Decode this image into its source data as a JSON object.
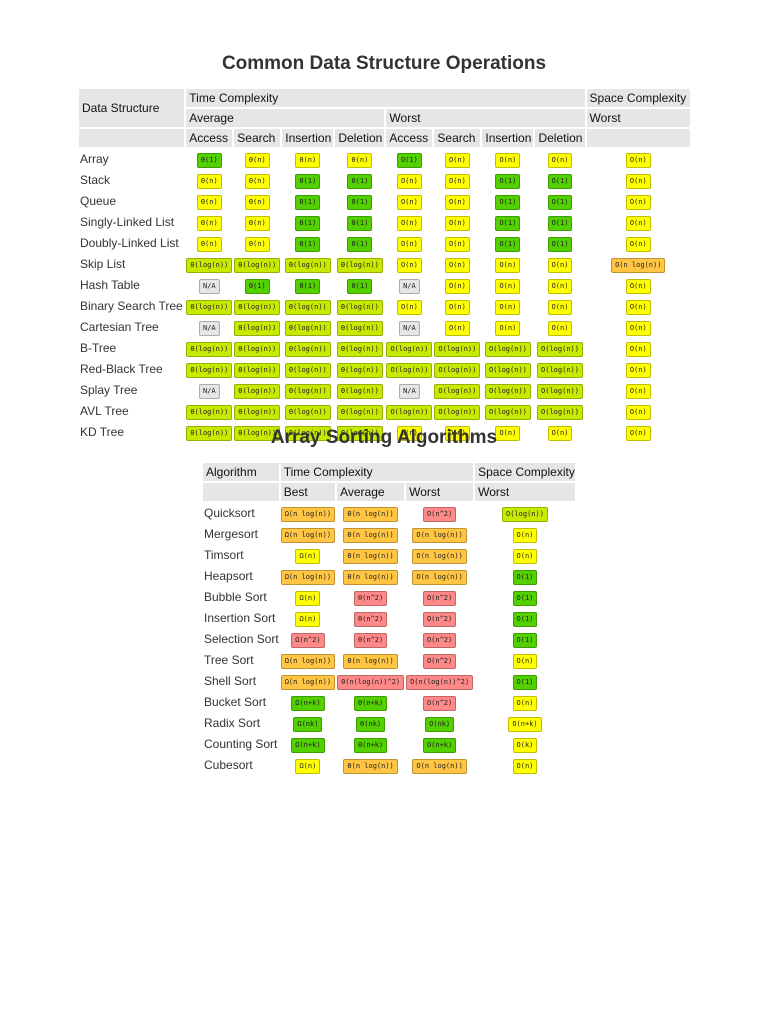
{
  "ds": {
    "title": "Common Data Structure Operations",
    "h_structure": "Data Structure",
    "h_time": "Time Complexity",
    "h_space": "Space Complexity",
    "h_average": "Average",
    "h_worst": "Worst",
    "h_space_worst": "Worst",
    "ops": [
      "Access",
      "Search",
      "Insertion",
      "Deletion",
      "Access",
      "Search",
      "Insertion",
      "Deletion"
    ],
    "rows": [
      {
        "name": "Array",
        "cells": [
          [
            "Θ(1)",
            "green"
          ],
          [
            "Θ(n)",
            "yellow"
          ],
          [
            "Θ(n)",
            "yellow"
          ],
          [
            "Θ(n)",
            "yellow"
          ],
          [
            "O(1)",
            "green"
          ],
          [
            "O(n)",
            "yellow"
          ],
          [
            "O(n)",
            "yellow"
          ],
          [
            "O(n)",
            "yellow"
          ],
          [
            "O(n)",
            "yellow"
          ]
        ]
      },
      {
        "name": "Stack",
        "cells": [
          [
            "Θ(n)",
            "yellow"
          ],
          [
            "Θ(n)",
            "yellow"
          ],
          [
            "Θ(1)",
            "green"
          ],
          [
            "Θ(1)",
            "green"
          ],
          [
            "O(n)",
            "yellow"
          ],
          [
            "O(n)",
            "yellow"
          ],
          [
            "O(1)",
            "green"
          ],
          [
            "O(1)",
            "green"
          ],
          [
            "O(n)",
            "yellow"
          ]
        ]
      },
      {
        "name": "Queue",
        "cells": [
          [
            "Θ(n)",
            "yellow"
          ],
          [
            "Θ(n)",
            "yellow"
          ],
          [
            "Θ(1)",
            "green"
          ],
          [
            "Θ(1)",
            "green"
          ],
          [
            "O(n)",
            "yellow"
          ],
          [
            "O(n)",
            "yellow"
          ],
          [
            "O(1)",
            "green"
          ],
          [
            "O(1)",
            "green"
          ],
          [
            "O(n)",
            "yellow"
          ]
        ]
      },
      {
        "name": "Singly-Linked List",
        "cells": [
          [
            "Θ(n)",
            "yellow"
          ],
          [
            "Θ(n)",
            "yellow"
          ],
          [
            "Θ(1)",
            "green"
          ],
          [
            "Θ(1)",
            "green"
          ],
          [
            "O(n)",
            "yellow"
          ],
          [
            "O(n)",
            "yellow"
          ],
          [
            "O(1)",
            "green"
          ],
          [
            "O(1)",
            "green"
          ],
          [
            "O(n)",
            "yellow"
          ]
        ]
      },
      {
        "name": "Doubly-Linked List",
        "cells": [
          [
            "Θ(n)",
            "yellow"
          ],
          [
            "Θ(n)",
            "yellow"
          ],
          [
            "Θ(1)",
            "green"
          ],
          [
            "Θ(1)",
            "green"
          ],
          [
            "O(n)",
            "yellow"
          ],
          [
            "O(n)",
            "yellow"
          ],
          [
            "O(1)",
            "green"
          ],
          [
            "O(1)",
            "green"
          ],
          [
            "O(n)",
            "yellow"
          ]
        ]
      },
      {
        "name": "Skip List",
        "cells": [
          [
            "Θ(log(n))",
            "lgreen"
          ],
          [
            "Θ(log(n))",
            "lgreen"
          ],
          [
            "Θ(log(n))",
            "lgreen"
          ],
          [
            "Θ(log(n))",
            "lgreen"
          ],
          [
            "O(n)",
            "yellow"
          ],
          [
            "O(n)",
            "yellow"
          ],
          [
            "O(n)",
            "yellow"
          ],
          [
            "O(n)",
            "yellow"
          ],
          [
            "O(n log(n))",
            "orange"
          ]
        ]
      },
      {
        "name": "Hash Table",
        "cells": [
          [
            "N/A",
            "gray"
          ],
          [
            "Θ(1)",
            "green"
          ],
          [
            "Θ(1)",
            "green"
          ],
          [
            "Θ(1)",
            "green"
          ],
          [
            "N/A",
            "gray"
          ],
          [
            "O(n)",
            "yellow"
          ],
          [
            "O(n)",
            "yellow"
          ],
          [
            "O(n)",
            "yellow"
          ],
          [
            "O(n)",
            "yellow"
          ]
        ]
      },
      {
        "name": "Binary Search Tree",
        "cells": [
          [
            "Θ(log(n))",
            "lgreen"
          ],
          [
            "Θ(log(n))",
            "lgreen"
          ],
          [
            "Θ(log(n))",
            "lgreen"
          ],
          [
            "Θ(log(n))",
            "lgreen"
          ],
          [
            "O(n)",
            "yellow"
          ],
          [
            "O(n)",
            "yellow"
          ],
          [
            "O(n)",
            "yellow"
          ],
          [
            "O(n)",
            "yellow"
          ],
          [
            "O(n)",
            "yellow"
          ]
        ]
      },
      {
        "name": "Cartesian Tree",
        "cells": [
          [
            "N/A",
            "gray"
          ],
          [
            "Θ(log(n))",
            "lgreen"
          ],
          [
            "Θ(log(n))",
            "lgreen"
          ],
          [
            "Θ(log(n))",
            "lgreen"
          ],
          [
            "N/A",
            "gray"
          ],
          [
            "O(n)",
            "yellow"
          ],
          [
            "O(n)",
            "yellow"
          ],
          [
            "O(n)",
            "yellow"
          ],
          [
            "O(n)",
            "yellow"
          ]
        ]
      },
      {
        "name": "B-Tree",
        "cells": [
          [
            "Θ(log(n))",
            "lgreen"
          ],
          [
            "Θ(log(n))",
            "lgreen"
          ],
          [
            "Θ(log(n))",
            "lgreen"
          ],
          [
            "Θ(log(n))",
            "lgreen"
          ],
          [
            "O(log(n))",
            "lgreen"
          ],
          [
            "O(log(n))",
            "lgreen"
          ],
          [
            "O(log(n))",
            "lgreen"
          ],
          [
            "O(log(n))",
            "lgreen"
          ],
          [
            "O(n)",
            "yellow"
          ]
        ]
      },
      {
        "name": "Red-Black Tree",
        "cells": [
          [
            "Θ(log(n))",
            "lgreen"
          ],
          [
            "Θ(log(n))",
            "lgreen"
          ],
          [
            "Θ(log(n))",
            "lgreen"
          ],
          [
            "Θ(log(n))",
            "lgreen"
          ],
          [
            "O(log(n))",
            "lgreen"
          ],
          [
            "O(log(n))",
            "lgreen"
          ],
          [
            "O(log(n))",
            "lgreen"
          ],
          [
            "O(log(n))",
            "lgreen"
          ],
          [
            "O(n)",
            "yellow"
          ]
        ]
      },
      {
        "name": "Splay Tree",
        "cells": [
          [
            "N/A",
            "gray"
          ],
          [
            "Θ(log(n))",
            "lgreen"
          ],
          [
            "Θ(log(n))",
            "lgreen"
          ],
          [
            "Θ(log(n))",
            "lgreen"
          ],
          [
            "N/A",
            "gray"
          ],
          [
            "O(log(n))",
            "lgreen"
          ],
          [
            "O(log(n))",
            "lgreen"
          ],
          [
            "O(log(n))",
            "lgreen"
          ],
          [
            "O(n)",
            "yellow"
          ]
        ]
      },
      {
        "name": "AVL Tree",
        "cells": [
          [
            "Θ(log(n))",
            "lgreen"
          ],
          [
            "Θ(log(n))",
            "lgreen"
          ],
          [
            "Θ(log(n))",
            "lgreen"
          ],
          [
            "Θ(log(n))",
            "lgreen"
          ],
          [
            "O(log(n))",
            "lgreen"
          ],
          [
            "O(log(n))",
            "lgreen"
          ],
          [
            "O(log(n))",
            "lgreen"
          ],
          [
            "O(log(n))",
            "lgreen"
          ],
          [
            "O(n)",
            "yellow"
          ]
        ]
      },
      {
        "name": "KD Tree",
        "cells": [
          [
            "Θ(log(n))",
            "lgreen"
          ],
          [
            "Θ(log(n))",
            "lgreen"
          ],
          [
            "Θ(log(n))",
            "lgreen"
          ],
          [
            "Θ(log(n))",
            "lgreen"
          ],
          [
            "O(n)",
            "yellow"
          ],
          [
            "O(n)",
            "yellow"
          ],
          [
            "O(n)",
            "yellow"
          ],
          [
            "O(n)",
            "yellow"
          ],
          [
            "O(n)",
            "yellow"
          ]
        ]
      }
    ]
  },
  "sort": {
    "title": "Array Sorting Algorithms",
    "h_algorithm": "Algorithm",
    "h_time": "Time Complexity",
    "h_space": "Space Complexity",
    "h_best": "Best",
    "h_average": "Average",
    "h_worst": "Worst",
    "h_space_worst": "Worst",
    "rows": [
      {
        "name": "Quicksort",
        "cells": [
          [
            "Ω(n log(n))",
            "orange"
          ],
          [
            "Θ(n log(n))",
            "orange"
          ],
          [
            "O(n^2)",
            "red"
          ],
          [
            "O(log(n))",
            "lgreen"
          ]
        ]
      },
      {
        "name": "Mergesort",
        "cells": [
          [
            "Ω(n log(n))",
            "orange"
          ],
          [
            "Θ(n log(n))",
            "orange"
          ],
          [
            "O(n log(n))",
            "orange"
          ],
          [
            "O(n)",
            "yellow"
          ]
        ]
      },
      {
        "name": "Timsort",
        "cells": [
          [
            "Ω(n)",
            "yellow"
          ],
          [
            "Θ(n log(n))",
            "orange"
          ],
          [
            "O(n log(n))",
            "orange"
          ],
          [
            "O(n)",
            "yellow"
          ]
        ]
      },
      {
        "name": "Heapsort",
        "cells": [
          [
            "Ω(n log(n))",
            "orange"
          ],
          [
            "Θ(n log(n))",
            "orange"
          ],
          [
            "O(n log(n))",
            "orange"
          ],
          [
            "O(1)",
            "green"
          ]
        ]
      },
      {
        "name": "Bubble Sort",
        "cells": [
          [
            "Ω(n)",
            "yellow"
          ],
          [
            "Θ(n^2)",
            "red"
          ],
          [
            "O(n^2)",
            "red"
          ],
          [
            "O(1)",
            "green"
          ]
        ]
      },
      {
        "name": "Insertion Sort",
        "cells": [
          [
            "Ω(n)",
            "yellow"
          ],
          [
            "Θ(n^2)",
            "red"
          ],
          [
            "O(n^2)",
            "red"
          ],
          [
            "O(1)",
            "green"
          ]
        ]
      },
      {
        "name": "Selection Sort",
        "cells": [
          [
            "Ω(n^2)",
            "red"
          ],
          [
            "Θ(n^2)",
            "red"
          ],
          [
            "O(n^2)",
            "red"
          ],
          [
            "O(1)",
            "green"
          ]
        ]
      },
      {
        "name": "Tree Sort",
        "cells": [
          [
            "Ω(n log(n))",
            "orange"
          ],
          [
            "Θ(n log(n))",
            "orange"
          ],
          [
            "O(n^2)",
            "red"
          ],
          [
            "O(n)",
            "yellow"
          ]
        ]
      },
      {
        "name": "Shell Sort",
        "cells": [
          [
            "Ω(n log(n))",
            "orange"
          ],
          [
            "Θ(n(log(n))^2)",
            "red"
          ],
          [
            "O(n(log(n))^2)",
            "red"
          ],
          [
            "O(1)",
            "green"
          ]
        ]
      },
      {
        "name": "Bucket Sort",
        "cells": [
          [
            "Ω(n+k)",
            "green"
          ],
          [
            "Θ(n+k)",
            "green"
          ],
          [
            "O(n^2)",
            "red"
          ],
          [
            "O(n)",
            "yellow"
          ]
        ]
      },
      {
        "name": "Radix Sort",
        "cells": [
          [
            "Ω(nk)",
            "green"
          ],
          [
            "Θ(nk)",
            "green"
          ],
          [
            "O(nk)",
            "green"
          ],
          [
            "O(n+k)",
            "yellow"
          ]
        ]
      },
      {
        "name": "Counting Sort",
        "cells": [
          [
            "Ω(n+k)",
            "green"
          ],
          [
            "Θ(n+k)",
            "green"
          ],
          [
            "O(n+k)",
            "green"
          ],
          [
            "O(k)",
            "yellow"
          ]
        ]
      },
      {
        "name": "Cubesort",
        "cells": [
          [
            "Ω(n)",
            "yellow"
          ],
          [
            "Θ(n log(n))",
            "orange"
          ],
          [
            "O(n log(n))",
            "orange"
          ],
          [
            "O(n)",
            "yellow"
          ]
        ]
      }
    ]
  }
}
